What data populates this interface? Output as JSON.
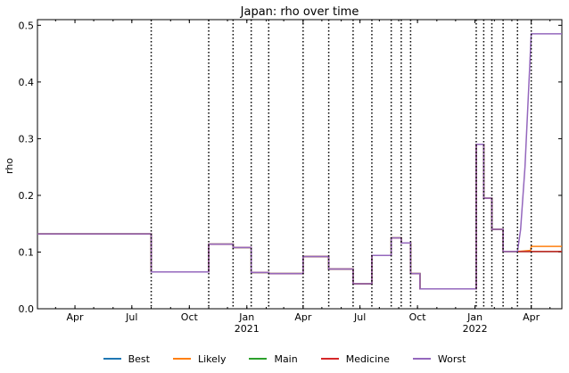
{
  "chart_data": {
    "type": "line",
    "title": "Japan: rho over time",
    "xlabel": "",
    "ylabel": "rho",
    "xlim": [
      "2020-02-01",
      "2022-05-20"
    ],
    "ylim": [
      0,
      0.51
    ],
    "yticks": [
      0.0,
      0.1,
      0.2,
      0.3,
      0.4,
      0.5
    ],
    "ytick_labels": [
      "0.0",
      "0.1",
      "0.2",
      "0.3",
      "0.4",
      "0.5"
    ],
    "xticks": [
      {
        "date": "2020-04-01",
        "label": "Apr"
      },
      {
        "date": "2020-07-01",
        "label": "Jul"
      },
      {
        "date": "2020-10-01",
        "label": "Oct"
      },
      {
        "date": "2021-01-01",
        "label": "Jan",
        "sublabel": "2021"
      },
      {
        "date": "2021-04-01",
        "label": "Apr"
      },
      {
        "date": "2021-07-01",
        "label": "Jul"
      },
      {
        "date": "2021-10-01",
        "label": "Oct"
      },
      {
        "date": "2022-01-01",
        "label": "Jan",
        "sublabel": "2022"
      },
      {
        "date": "2022-04-01",
        "label": "Apr"
      }
    ],
    "grid": false,
    "legend_position": "bottom",
    "vlines": [
      "2020-08-01",
      "2020-11-01",
      "2020-12-10",
      "2021-01-08",
      "2021-02-05",
      "2021-04-01",
      "2021-05-12",
      "2021-06-20",
      "2021-07-20",
      "2021-08-20",
      "2021-09-05",
      "2021-09-20",
      "2022-01-03",
      "2022-01-15",
      "2022-01-28",
      "2022-02-15",
      "2022-03-10",
      "2022-04-01"
    ],
    "shared_steps": [
      [
        "2020-02-01",
        0.132
      ],
      [
        "2020-08-01",
        0.065
      ],
      [
        "2020-11-01",
        0.114
      ],
      [
        "2020-12-10",
        0.108
      ],
      [
        "2021-01-08",
        0.064
      ],
      [
        "2021-02-05",
        0.062
      ],
      [
        "2021-04-01",
        0.092
      ],
      [
        "2021-05-12",
        0.07
      ],
      [
        "2021-06-20",
        0.044
      ],
      [
        "2021-07-20",
        0.094
      ],
      [
        "2021-08-20",
        0.125
      ],
      [
        "2021-09-05",
        0.116
      ],
      [
        "2021-09-20",
        0.062
      ],
      [
        "2021-10-05",
        0.035
      ],
      [
        "2022-01-03",
        0.29
      ],
      [
        "2022-01-15",
        0.195
      ],
      [
        "2022-01-28",
        0.14
      ],
      [
        "2022-02-15",
        0.101
      ]
    ],
    "series": [
      {
        "name": "Best",
        "color": "#1f77b4",
        "tail": [
          [
            "2022-05-20",
            0.101
          ]
        ]
      },
      {
        "name": "Likely",
        "color": "#ff7f0e",
        "tail": [
          [
            "2022-03-10",
            0.101
          ],
          [
            "2022-03-31",
            0.103
          ],
          [
            "2022-04-01",
            0.11
          ],
          [
            "2022-05-20",
            0.11
          ]
        ]
      },
      {
        "name": "Main",
        "color": "#2ca02c",
        "tail": [
          [
            "2022-05-20",
            0.101
          ]
        ]
      },
      {
        "name": "Medicine",
        "color": "#d62728",
        "tail": [
          [
            "2022-05-20",
            0.101
          ]
        ]
      },
      {
        "name": "Worst",
        "color": "#9467bd",
        "tail": [
          [
            "2022-03-10",
            0.101
          ],
          [
            "2022-03-15",
            0.14
          ],
          [
            "2022-03-22",
            0.25
          ],
          [
            "2022-04-01",
            0.485
          ],
          [
            "2022-05-20",
            0.485
          ]
        ]
      }
    ]
  }
}
